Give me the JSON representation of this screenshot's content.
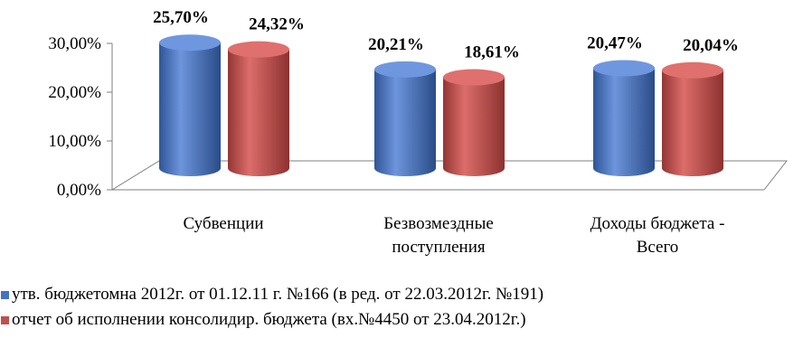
{
  "chart_data": {
    "type": "bar",
    "categories": [
      [
        "Субвенции"
      ],
      [
        "Безвозмездные",
        "поступления"
      ],
      [
        "Доходы бюджета -",
        "Всего"
      ]
    ],
    "series": [
      {
        "name": "утв. бюджетомна 2012г. от  01.12.11 г. №166  (в ред. от 22.03.2012г. №191)",
        "values": [
          25.7,
          20.21,
          20.47
        ],
        "labels": [
          "25,70%",
          "20,21%",
          "20,47%"
        ],
        "color": "#4472C4"
      },
      {
        "name": "отчет об исполнении консолидир. бюджета (вх.№4450 от 23.04.2012г.)",
        "values": [
          24.32,
          18.61,
          20.04
        ],
        "labels": [
          "24,32%",
          "18,61%",
          "20,04%"
        ],
        "color": "#C0504D"
      }
    ],
    "yticks": [
      "0,00%",
      "10,00%",
      "20,00%",
      "30,00%"
    ],
    "ylim": [
      0,
      30
    ],
    "style": "3d-cylinder",
    "legend_position": "bottom",
    "grid": false
  }
}
